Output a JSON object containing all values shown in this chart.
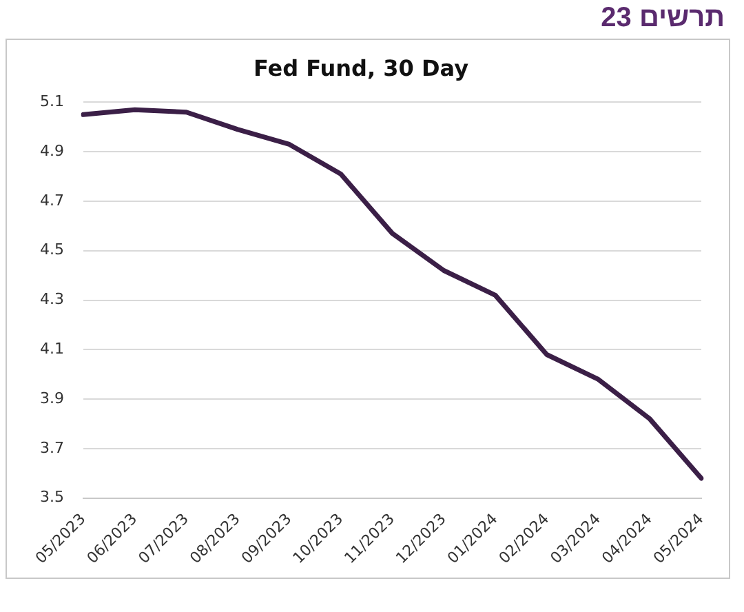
{
  "chart_data": {
    "type": "line",
    "title": "Fed Fund, 30 Day",
    "annotations": [
      "תרשים 23"
    ],
    "categories": [
      "05/2023",
      "06/2023",
      "07/2023",
      "08/2023",
      "09/2023",
      "10/2023",
      "11/2023",
      "12/2023",
      "01/2024",
      "02/2024",
      "03/2024",
      "04/2024",
      "05/2024"
    ],
    "series": [
      {
        "color": "#3b1f47",
        "values": [
          5.05,
          5.07,
          5.06,
          4.99,
          4.93,
          4.81,
          4.57,
          4.42,
          4.32,
          4.08,
          3.98,
          3.82,
          3.58
        ]
      }
    ],
    "ylim": [
      3.5,
      5.1
    ],
    "yticks": [
      3.5,
      3.7,
      3.9,
      4.1,
      4.3,
      4.5,
      4.7,
      4.9,
      5.1
    ],
    "grid": "y",
    "legend": false,
    "marker": "none",
    "line_style": "solid"
  }
}
